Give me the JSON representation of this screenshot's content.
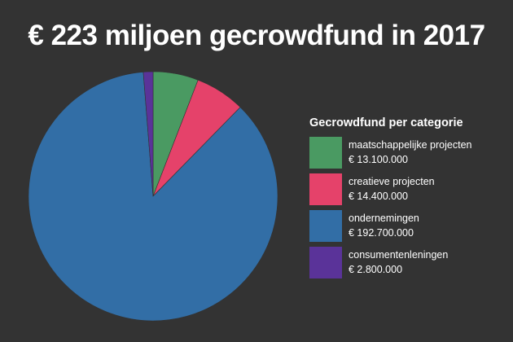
{
  "title": "€ 223 miljoen gecrowdfund in 2017",
  "legend": {
    "title": "Gecrowdfund per categorie"
  },
  "chart_data": {
    "type": "pie",
    "title": "€ 223 miljoen gecrowdfund in 2017",
    "legend_title": "Gecrowdfund per categorie",
    "legend_position": "right",
    "start_angle_deg": 0,
    "direction": "clockwise",
    "slices": [
      {
        "label": "maatschappelijke projecten",
        "value": 13100000,
        "value_label": "€ 13.100.000",
        "color": "#4a9a62"
      },
      {
        "label": "creatieve projecten",
        "value": 14400000,
        "value_label": "€ 14.400.000",
        "color": "#e5426a"
      },
      {
        "label": "ondernemingen",
        "value": 192700000,
        "value_label": "€ 192.700.000",
        "color": "#326ea6"
      },
      {
        "label": "consumentenleningen",
        "value": 2800000,
        "value_label": "€ 2.800.000",
        "color": "#5a3399"
      }
    ]
  }
}
